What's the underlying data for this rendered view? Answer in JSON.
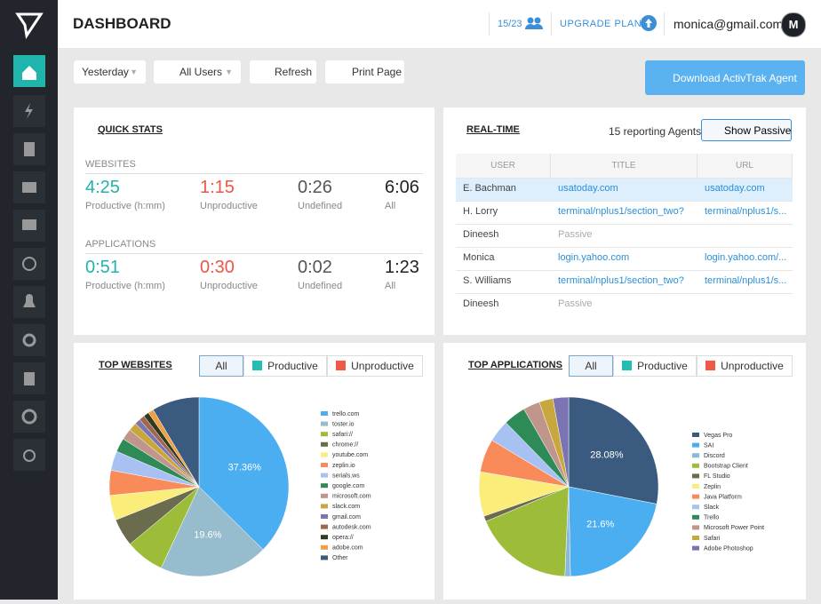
{
  "header": {
    "title": "DASHBOARD",
    "licenses": "15/23",
    "upgrade": "UPGRADE PLAN",
    "email": "monica@gmail.com",
    "avatar": "M"
  },
  "toolbar": {
    "date": "Yesterday",
    "users": "All Users",
    "refresh": "Refresh",
    "print": "Print Page",
    "download": "Download ActivTrak Agent"
  },
  "quick_stats": {
    "title": "QUICK STATS",
    "groups": [
      {
        "label": "WEBSITES",
        "stats": [
          {
            "value": "4:25",
            "label": "Productive (h:mm)"
          },
          {
            "value": "1:15",
            "label": "Unproductive"
          },
          {
            "value": "0:26",
            "label": "Undefined"
          },
          {
            "value": "6:06",
            "label": "All"
          }
        ]
      },
      {
        "label": "APPLICATIONS",
        "stats": [
          {
            "value": "0:51",
            "label": "Productive (h:mm)"
          },
          {
            "value": "0:30",
            "label": "Unproductive"
          },
          {
            "value": "0:02",
            "label": "Undefined"
          },
          {
            "value": "1:23",
            "label": "All"
          }
        ]
      }
    ]
  },
  "realtime": {
    "title": "REAL-TIME",
    "agents": "15 reporting Agents",
    "button": "Show Passive",
    "columns": [
      "USER",
      "TITLE",
      "URL"
    ],
    "rows": [
      [
        "E. Bachman",
        "usatoday.com",
        "usatoday.com"
      ],
      [
        "H. Lorry",
        "terminal/nplus1/section_two?",
        "terminal/nplus1/s..."
      ],
      [
        "Dineesh",
        "Passive"
      ],
      [
        "Monica",
        "login.yahoo.com",
        "login.yahoo.com/..."
      ],
      [
        "S. Williams",
        "terminal/nplus1/section_two?",
        "terminal/nplus1/s..."
      ],
      [
        "Dineesh",
        "Passive"
      ]
    ]
  },
  "top_websites": {
    "title": "TOP WEBSITES",
    "filters": [
      "All",
      "Productive",
      "Unproductive"
    ],
    "chart": {
      "type": "pie",
      "categories": [
        "trello.com",
        "toster.io",
        "safari://",
        "chrome://",
        "youtube.com",
        "zeplin.io",
        "serials.ws",
        "google.com",
        "microsoft.com",
        "slack.com",
        "gmail.com",
        "autodesk.com",
        "opera://",
        "adobe.com",
        "Other"
      ],
      "values": [
        37.36,
        19.6,
        7,
        5,
        4.5,
        4.5,
        3.5,
        2.5,
        2,
        1.5,
        1,
        1,
        1,
        1,
        8.54
      ],
      "value_labels": [
        "37.36%",
        "19.6%",
        null,
        null,
        null,
        null,
        null,
        null,
        null,
        null,
        null,
        null,
        null,
        null,
        null
      ],
      "colors": [
        "#4aaef0",
        "#96bccd",
        "#9dbd3a",
        "#6b6b4e",
        "#fbed7a",
        "#f98a5a",
        "#a8c1f3",
        "#2e8b57",
        "#c0958c",
        "#c8a83c",
        "#7a74b2",
        "#a0664f",
        "#2e3b1f",
        "#f0a040",
        "#3a5a80"
      ]
    }
  },
  "top_applications": {
    "title": "TOP APPLICATIONS",
    "filters": [
      "All",
      "Productive",
      "Unproductive"
    ],
    "chart": {
      "type": "pie",
      "categories": [
        "Vegas Pro",
        "SAI",
        "Discord",
        "Bootstrap Client",
        "FL Studio",
        "Zeplin",
        "Java Platform",
        "Slack",
        "Trello",
        "Microsoft Power Point",
        "Safari",
        "Adobe Photoshop"
      ],
      "values": [
        28.08,
        21.6,
        1,
        18,
        1,
        8,
        6,
        4,
        4,
        3,
        2.5,
        2.82
      ],
      "value_labels": [
        "28.08%",
        "21.6%",
        null,
        null,
        null,
        null,
        null,
        null,
        null,
        null,
        null,
        null
      ],
      "colors": [
        "#3a5a80",
        "#4aaef0",
        "#8ab8d8",
        "#9dbd3a",
        "#6b6b4e",
        "#fbed7a",
        "#f98a5a",
        "#a8c1f3",
        "#2e8b57",
        "#c0958c",
        "#c8a83c",
        "#7a74b2"
      ]
    }
  }
}
